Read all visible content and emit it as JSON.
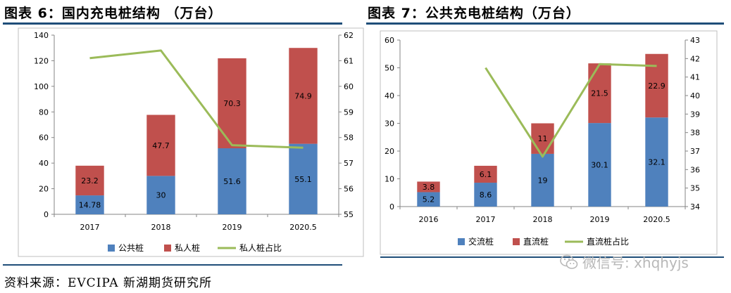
{
  "watermark": {
    "text": "微信号: xhqhyjs"
  },
  "source": "资料来源：EVCIPA 新湖期货研究所",
  "chart_data": [
    {
      "type": "bar",
      "title": "图表 6：国内充电桩结构 （万台）",
      "stacked": true,
      "categories": [
        "2017",
        "2018",
        "2019",
        "2020.5"
      ],
      "series": [
        {
          "name": "公共桩",
          "values": [
            14.78,
            30,
            51.6,
            55.1
          ],
          "labels": [
            "14.78",
            "30",
            "51.6",
            "55.1"
          ],
          "color": "#4f81bd"
        },
        {
          "name": "私人桩",
          "values": [
            23.2,
            47.7,
            70.3,
            74.9
          ],
          "labels": [
            "23.2",
            "47.7",
            "70.3",
            "74.9"
          ],
          "color": "#c0504d"
        }
      ],
      "line": {
        "name": "私人桩占比",
        "values": [
          61.1,
          61.4,
          57.7,
          57.6
        ],
        "color": "#9bbb59",
        "axis": "right"
      },
      "ylim": [
        0,
        140
      ],
      "yticks": [
        0,
        20,
        40,
        60,
        80,
        100,
        120,
        140
      ],
      "y2lim": [
        55,
        62
      ],
      "y2ticks": [
        55,
        56,
        57,
        58,
        59,
        60,
        61,
        62
      ],
      "legend": "bottom"
    },
    {
      "type": "bar",
      "title": "图表 7：公共充电桩结构（万台）",
      "stacked": true,
      "categories": [
        "2016",
        "2017",
        "2018",
        "2019",
        "2020.5"
      ],
      "series": [
        {
          "name": "交流桩",
          "values": [
            5.2,
            8.6,
            19,
            30.1,
            32.1
          ],
          "labels": [
            "5.2",
            "8.6",
            "19",
            "30.1",
            "32.1"
          ],
          "color": "#4f81bd"
        },
        {
          "name": "直流桩",
          "values": [
            3.8,
            6.1,
            11,
            21.5,
            22.9
          ],
          "labels": [
            "3.8",
            "6.1",
            "11",
            "21.5",
            "22.9"
          ],
          "color": "#c0504d"
        }
      ],
      "line": {
        "name": "直流桩占比",
        "values": [
          null,
          41.5,
          36.7,
          41.7,
          41.6
        ],
        "color": "#9bbb59",
        "axis": "right"
      },
      "ylim": [
        0,
        60
      ],
      "yticks": [
        0,
        10,
        20,
        30,
        40,
        50,
        60
      ],
      "y2lim": [
        34,
        43
      ],
      "y2ticks": [
        34,
        35,
        36,
        37,
        38,
        39,
        40,
        41,
        42,
        43
      ],
      "legend": "bottom"
    }
  ]
}
